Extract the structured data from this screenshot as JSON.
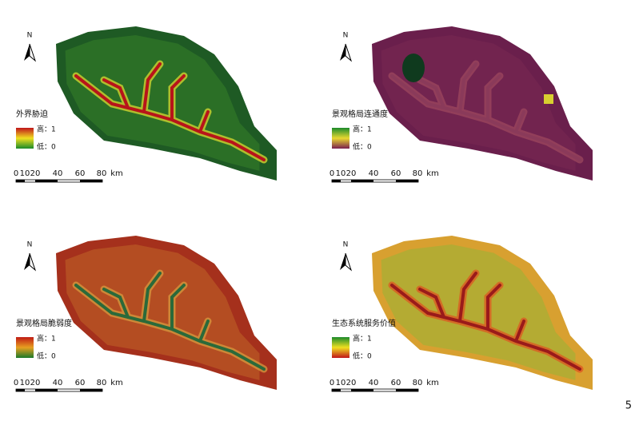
{
  "panels": [
    {
      "north": "N",
      "legend": {
        "title": "外界胁迫",
        "high": "高：1",
        "low": "低：0"
      },
      "scale": [
        "0",
        "10",
        "20",
        "40",
        "60",
        "80",
        "km"
      ]
    },
    {
      "north": "N",
      "legend": {
        "title": "景观格局连通度",
        "high": "高：1",
        "low": "低：0"
      },
      "scale": [
        "0",
        "10",
        "20",
        "40",
        "60",
        "80",
        "km"
      ]
    },
    {
      "north": "N",
      "legend": {
        "title": "景观格局脆弱度",
        "high": "高：1",
        "low": "低：0"
      },
      "scale": [
        "0",
        "10",
        "20",
        "40",
        "60",
        "80",
        "km"
      ]
    },
    {
      "north": "N",
      "legend": {
        "title": "生态系统服务价值",
        "high": "高：1",
        "low": "低：0"
      },
      "scale": [
        "0",
        "10",
        "20",
        "40",
        "60",
        "80",
        "km"
      ]
    }
  ],
  "page_number": "5"
}
